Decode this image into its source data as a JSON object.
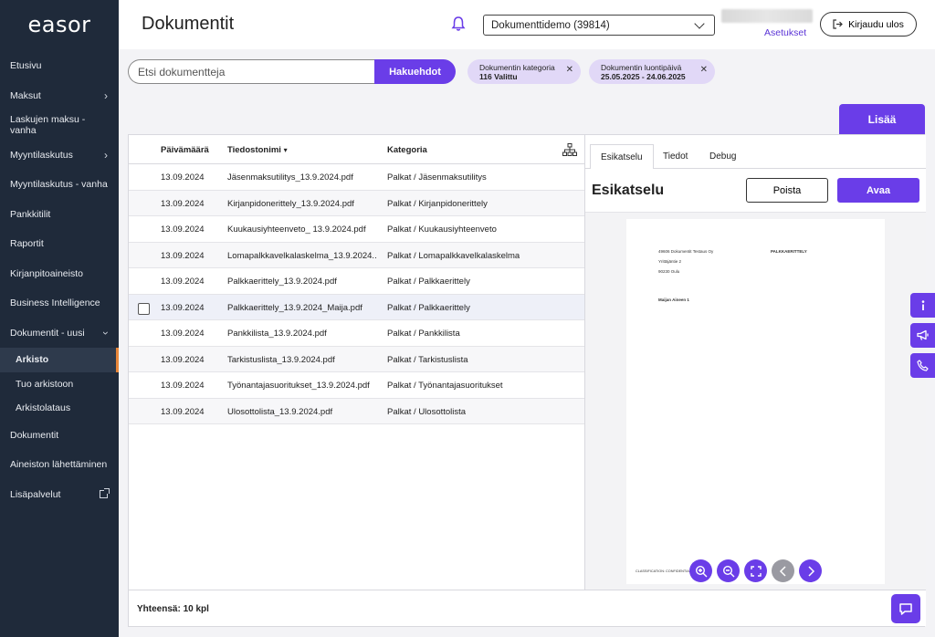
{
  "brand": {
    "logo_text": "easor"
  },
  "sidebar": {
    "items": [
      {
        "label": "Etusivu"
      },
      {
        "label": "Maksut"
      },
      {
        "label": "Laskujen maksu - vanha"
      },
      {
        "label": "Myyntilaskutus"
      },
      {
        "label": "Myyntilaskutus - vanha"
      },
      {
        "label": "Pankkitilit"
      },
      {
        "label": "Raportit"
      },
      {
        "label": "Kirjanpitoaineisto"
      },
      {
        "label": "Business Intelligence"
      },
      {
        "label": "Dokumentit - uusi"
      }
    ],
    "sub_items": [
      {
        "label": "Arkisto"
      },
      {
        "label": "Tuo arkistoon"
      },
      {
        "label": "Arkistolataus"
      }
    ],
    "items_after": [
      {
        "label": "Dokumentit"
      },
      {
        "label": "Aineiston lähettäminen"
      },
      {
        "label": "Lisäpalvelut"
      }
    ]
  },
  "header": {
    "title": "Dokumentit",
    "org_select": "Dokumenttidemo (39814)",
    "settings": "Asetukset",
    "logout": "Kirjaudu ulos"
  },
  "search": {
    "placeholder": "Etsi dokumentteja",
    "button": "Hakuehdot"
  },
  "filters": [
    {
      "label": "Dokumentin kategoria",
      "value": "116 Valittu"
    },
    {
      "label": "Dokumentin luontipäivä",
      "value": "25.05.2025 - 24.06.2025"
    }
  ],
  "add_button": "Lisää",
  "table": {
    "columns": [
      "Päivämäärä",
      "Tiedostonimi",
      "Kategoria"
    ],
    "sort_indicator": "▾",
    "rows": [
      {
        "date": "13.09.2024",
        "name": "Jäsenmaksutilitys_13.9.2024.pdf",
        "category": "Palkat / Jäsenmaksutilitys"
      },
      {
        "date": "13.09.2024",
        "name": "Kirjanpidonerittely_13.9.2024.pdf",
        "category": "Palkat / Kirjanpidonerittely"
      },
      {
        "date": "13.09.2024",
        "name": "Kuukausiyhteenveto_ 13.9.2024.pdf",
        "category": "Palkat / Kuukausiyhteenveto"
      },
      {
        "date": "13.09.2024",
        "name": "Lomapalkkavelkalaskelma_13.9.2024....",
        "category": "Palkat / Lomapalkkavelkalaskelma"
      },
      {
        "date": "13.09.2024",
        "name": "Palkkaerittely_13.9.2024.pdf",
        "category": "Palkat / Palkkaerittely"
      },
      {
        "date": "13.09.2024",
        "name": "Palkkaerittely_13.9.2024_Maija.pdf",
        "category": "Palkat / Palkkaerittely"
      },
      {
        "date": "13.09.2024",
        "name": "Pankkilista_13.9.2024.pdf",
        "category": "Palkat / Pankkilista"
      },
      {
        "date": "13.09.2024",
        "name": "Tarkistuslista_13.9.2024.pdf",
        "category": "Palkat / Tarkistuslista"
      },
      {
        "date": "13.09.2024",
        "name": "Työnantajasuoritukset_13.9.2024.pdf",
        "category": "Palkat / Työnantajasuoritukset"
      },
      {
        "date": "13.09.2024",
        "name": "Ulosottolista_13.9.2024.pdf",
        "category": "Palkat / Ulosottolista"
      }
    ]
  },
  "preview": {
    "tabs": [
      "Esikatselu",
      "Tiedot",
      "Debug"
    ],
    "title": "Esikatselu",
    "delete": "Poista",
    "open": "Avaa",
    "doc": {
      "company": "49606 Dokumentit Testaus Oy",
      "street": "Yrittäjäntie 2",
      "postal": "90230 Oulu",
      "doc_title": "PALKKAERITTELY",
      "recipient": "Maijan Aineen 1",
      "footer": "CLASSIFICATION: CONFIDENTIAL"
    }
  },
  "footer": {
    "total": "Yhteensä: 10 kpl"
  },
  "colors": {
    "accent": "#6a3de8",
    "sidebar": "#1f2a3a",
    "chip": "#e1d8f7",
    "active_marker": "#e8873a"
  }
}
